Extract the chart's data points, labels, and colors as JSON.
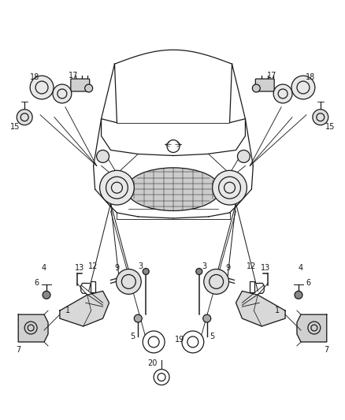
{
  "bg_color": "#ffffff",
  "line_color": "#1a1a1a",
  "text_color": "#1a1a1a",
  "fig_width": 4.38,
  "fig_height": 5.33,
  "dpi": 100
}
